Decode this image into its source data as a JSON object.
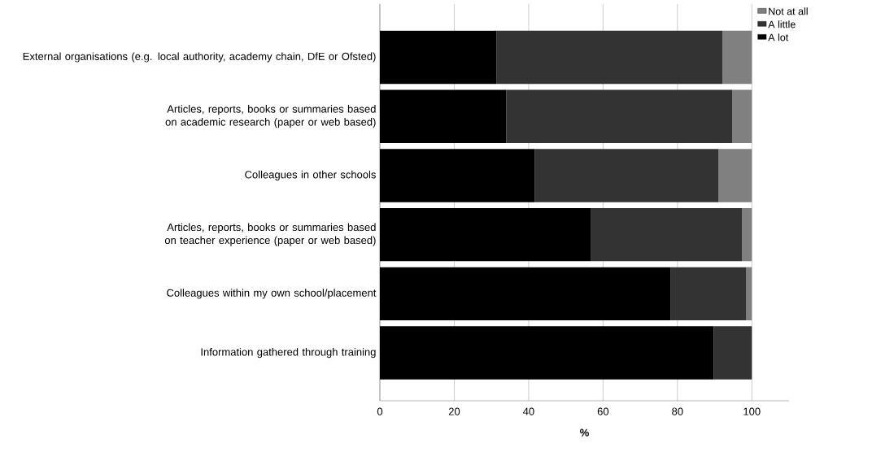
{
  "chart_data": {
    "type": "bar",
    "orientation": "horizontal",
    "stacked": true,
    "categories": [
      "External organisations (e.g. local authority, academy chain, DfE or Ofsted)",
      "Articles, reports, books or summaries based on academic research (paper or web based)",
      "Colleagues in other schools",
      "Articles, reports, books or summaries based on teacher experience (paper or web based)",
      "Colleagues within my own school/placement",
      "Information gathered through training"
    ],
    "series": [
      {
        "name": "A lot",
        "color": "#000000",
        "values": [
          31.4,
          34.0,
          41.6,
          56.8,
          78.1,
          89.7
        ]
      },
      {
        "name": "A little",
        "color": "#333333",
        "values": [
          60.7,
          60.7,
          49.4,
          40.6,
          20.4,
          10.3
        ]
      },
      {
        "name": "Not at all",
        "color": "#808080",
        "values": [
          7.9,
          5.3,
          9.0,
          2.6,
          1.5,
          0
        ]
      }
    ],
    "xlim": [
      0,
      110
    ],
    "xticks": [
      0,
      20,
      40,
      60,
      80,
      100
    ],
    "xlabel": "%",
    "grid": "x",
    "legend": "top right"
  }
}
